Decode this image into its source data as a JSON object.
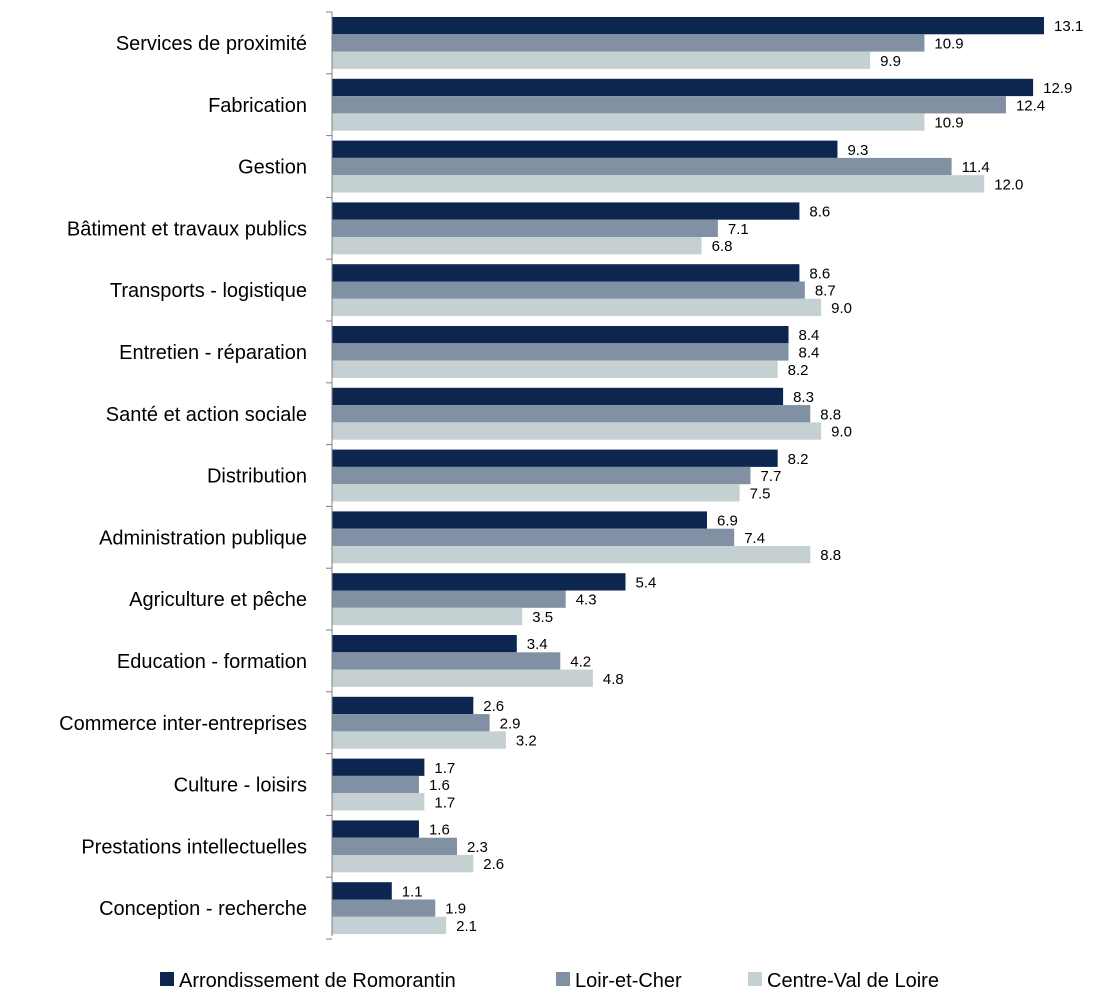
{
  "chart_data": {
    "type": "bar",
    "orientation": "horizontal",
    "categories": [
      "Services de proximité",
      "Fabrication",
      "Gestion",
      "Bâtiment et travaux publics",
      "Transports - logistique",
      "Entretien - réparation",
      "Santé et action sociale",
      "Distribution",
      "Administration publique",
      "Agriculture et pêche",
      "Education - formation",
      "Commerce inter-entreprises",
      "Culture - loisirs",
      "Prestations intellectuelles",
      "Conception - recherche"
    ],
    "series": [
      {
        "name": "Arrondissement de Romorantin",
        "color": "#0d2650",
        "values": [
          13.1,
          12.9,
          9.3,
          8.6,
          8.6,
          8.4,
          8.3,
          8.2,
          6.9,
          5.4,
          3.4,
          2.6,
          1.7,
          1.6,
          1.1
        ],
        "labels": [
          "13.1",
          "12.9",
          "9.3",
          "8.6",
          "8.6",
          "8.4",
          "8.3",
          "8.2",
          "6.9",
          "5.4",
          "3.4",
          "2.6",
          "1.7",
          "1.6",
          "1.1"
        ]
      },
      {
        "name": "Loir-et-Cher",
        "color": "#8290a3",
        "values": [
          10.9,
          12.4,
          11.4,
          7.1,
          8.7,
          8.4,
          8.8,
          7.7,
          7.4,
          4.3,
          4.2,
          2.9,
          1.6,
          2.3,
          1.9
        ],
        "labels": [
          "10.9",
          "12.4",
          "11.4",
          "7.1",
          "8.7",
          "8.4",
          "8.8",
          "7.7",
          "7.4",
          "4.3",
          "4.2",
          "2.9",
          "1.6",
          "2.3",
          "1.9"
        ]
      },
      {
        "name": "Centre-Val de Loire",
        "color": "#c4d0d1",
        "values": [
          9.9,
          10.9,
          12.0,
          6.8,
          9.0,
          8.2,
          9.0,
          7.5,
          8.8,
          3.5,
          4.8,
          3.2,
          1.7,
          2.6,
          2.1
        ],
        "labels": [
          "9.9",
          "10.9",
          "12.0",
          "6.8",
          "9.0",
          "8.2",
          "9.0",
          "7.5",
          "8.8",
          "3.5",
          "4.8",
          "3.2",
          "1.7",
          "2.6",
          "2.1"
        ]
      }
    ],
    "xlim": [
      0,
      14
    ],
    "grid": false,
    "legend": "bottom",
    "title": "",
    "xlabel": "",
    "ylabel": ""
  }
}
